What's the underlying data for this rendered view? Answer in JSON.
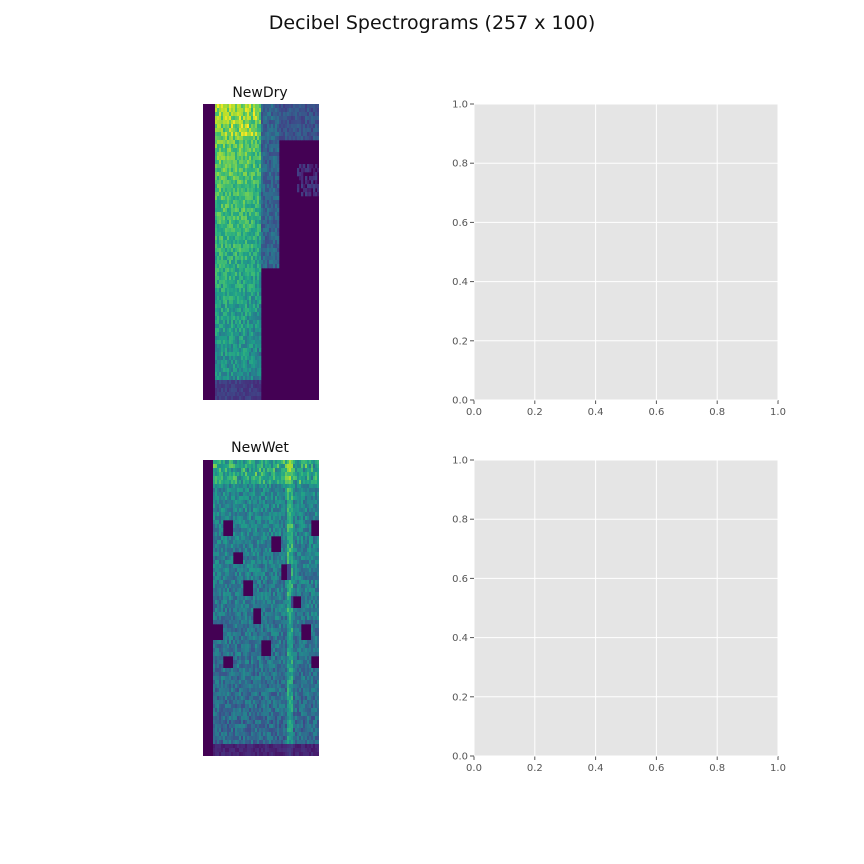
{
  "figure": {
    "title": "Decibel Spectrograms (257 x 100)"
  },
  "chart_data": [
    {
      "type": "heatmap",
      "title": "NewDry",
      "rows": 257,
      "cols": 100,
      "colormap": "viridis",
      "axis": "off",
      "description_profile": "energy concentrated in left columns"
    },
    {
      "type": "scatter",
      "title": "",
      "xlim": [
        0,
        1
      ],
      "ylim": [
        0,
        1
      ],
      "xticks": [
        "0.0",
        "0.2",
        "0.4",
        "0.6",
        "0.8",
        "1.0"
      ],
      "yticks": [
        "0.0",
        "0.2",
        "0.4",
        "0.6",
        "0.8",
        "1.0"
      ],
      "grid": true,
      "x": [],
      "y": []
    },
    {
      "type": "heatmap",
      "title": "NewWet",
      "rows": 257,
      "cols": 100,
      "colormap": "viridis",
      "axis": "off",
      "description_profile": "broadband energy with dark patches"
    },
    {
      "type": "scatter",
      "title": "",
      "xlim": [
        0,
        1
      ],
      "ylim": [
        0,
        1
      ],
      "xticks": [
        "0.0",
        "0.2",
        "0.4",
        "0.6",
        "0.8",
        "1.0"
      ],
      "yticks": [
        "0.0",
        "0.2",
        "0.4",
        "0.6",
        "0.8",
        "1.0"
      ],
      "grid": true,
      "x": [],
      "y": []
    }
  ],
  "colors": {
    "axes_background": "#e5e5e5",
    "grid": "#ffffff",
    "viridis_low": "#440154",
    "viridis_high": "#fde725"
  }
}
